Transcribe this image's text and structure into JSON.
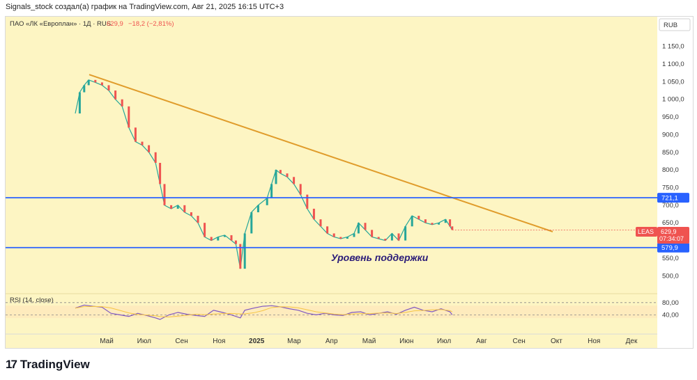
{
  "header": {
    "attribution": "Signals_stock создал(а) график на TradingView.com, Авг 21, 2025 16:15 UTC+3"
  },
  "legend": {
    "symbol": "ПАО «ЛК «Европлан» · 1Д · RUS",
    "price": "629,9",
    "change": "−18,2 (−2,81%)"
  },
  "currency": "RUB",
  "price_tag": {
    "ticker": "LEAS",
    "price": "629,9",
    "countdown": "07:34:07"
  },
  "support_label": "Уровень поддержки",
  "rsi_label": "RSI (14, close)",
  "footer": {
    "brand": "TradingView"
  },
  "colors": {
    "chart_bg": "#fdf5c3",
    "up": "#26a69a",
    "down": "#ef5350",
    "trendline": "#e09c2b",
    "level": "#2962ff",
    "rsi": "#7e57c2",
    "rsi_ma": "#f5c542",
    "tag_red": "#ef5350",
    "tag_blue": "#2962ff"
  },
  "chart_data": {
    "type": "line",
    "price_axis": {
      "ticks": [
        500,
        550,
        600,
        650,
        700,
        750,
        800,
        850,
        900,
        950,
        1000,
        1050,
        1100,
        1150
      ],
      "labels": [
        "500,0",
        "550,0",
        "600,0",
        "650,0",
        "700,0",
        "750,0",
        "800,0",
        "850,0",
        "900,0",
        "950,0",
        "1 000,0",
        "1 050,0",
        "1 100,0",
        "1 150,0"
      ],
      "range": [
        465,
        1175
      ]
    },
    "time_axis": {
      "labels": [
        "Май",
        "Июл",
        "Сен",
        "Ноя",
        "2025",
        "Мар",
        "Апр",
        "Май",
        "Июн",
        "Июл",
        "Авг",
        "Сен",
        "Окт",
        "Ноя",
        "Дек"
      ],
      "bold": [
        "2025"
      ]
    },
    "levels": [
      {
        "value": 721.1,
        "label": "721,1"
      },
      {
        "value": 579.9,
        "label": "579,9"
      }
    ],
    "trendline": {
      "start_price": 1070,
      "end_price": 625
    },
    "price_series": [
      [
        0.0,
        960
      ],
      [
        0.01,
        1020
      ],
      [
        0.02,
        1040
      ],
      [
        0.03,
        1055
      ],
      [
        0.045,
        1048
      ],
      [
        0.06,
        1040
      ],
      [
        0.075,
        1025
      ],
      [
        0.09,
        1000
      ],
      [
        0.105,
        980
      ],
      [
        0.12,
        920
      ],
      [
        0.135,
        880
      ],
      [
        0.15,
        870
      ],
      [
        0.165,
        850
      ],
      [
        0.18,
        820
      ],
      [
        0.19,
        760
      ],
      [
        0.2,
        700
      ],
      [
        0.215,
        690
      ],
      [
        0.23,
        700
      ],
      [
        0.245,
        680
      ],
      [
        0.26,
        670
      ],
      [
        0.275,
        650
      ],
      [
        0.29,
        610
      ],
      [
        0.305,
        600
      ],
      [
        0.32,
        610
      ],
      [
        0.335,
        615
      ],
      [
        0.35,
        600
      ],
      [
        0.36,
        590
      ],
      [
        0.37,
        520
      ],
      [
        0.38,
        620
      ],
      [
        0.395,
        680
      ],
      [
        0.41,
        700
      ],
      [
        0.43,
        720
      ],
      [
        0.44,
        760
      ],
      [
        0.45,
        800
      ],
      [
        0.46,
        790
      ],
      [
        0.475,
        780
      ],
      [
        0.49,
        760
      ],
      [
        0.505,
        730
      ],
      [
        0.52,
        690
      ],
      [
        0.535,
        660
      ],
      [
        0.55,
        640
      ],
      [
        0.565,
        620
      ],
      [
        0.58,
        610
      ],
      [
        0.595,
        605
      ],
      [
        0.61,
        610
      ],
      [
        0.625,
        620
      ],
      [
        0.635,
        650
      ],
      [
        0.65,
        630
      ],
      [
        0.665,
        610
      ],
      [
        0.68,
        605
      ],
      [
        0.695,
        600
      ],
      [
        0.71,
        620
      ],
      [
        0.725,
        600
      ],
      [
        0.74,
        640
      ],
      [
        0.755,
        670
      ],
      [
        0.77,
        660
      ],
      [
        0.785,
        650
      ],
      [
        0.8,
        645
      ],
      [
        0.815,
        650
      ],
      [
        0.83,
        660
      ],
      [
        0.84,
        640
      ],
      [
        0.845,
        630
      ]
    ],
    "rsi": {
      "levels": [
        {
          "value": 80,
          "label": "80,00"
        },
        {
          "value": 40,
          "label": "40,00"
        }
      ],
      "band": [
        30,
        70
      ],
      "values": [
        [
          0.0,
          62
        ],
        [
          0.02,
          72
        ],
        [
          0.04,
          68
        ],
        [
          0.06,
          65
        ],
        [
          0.08,
          45
        ],
        [
          0.1,
          40
        ],
        [
          0.12,
          35
        ],
        [
          0.14,
          45
        ],
        [
          0.16,
          38
        ],
        [
          0.18,
          30
        ],
        [
          0.19,
          25
        ],
        [
          0.21,
          40
        ],
        [
          0.23,
          48
        ],
        [
          0.25,
          42
        ],
        [
          0.27,
          38
        ],
        [
          0.29,
          35
        ],
        [
          0.31,
          55
        ],
        [
          0.33,
          48
        ],
        [
          0.35,
          40
        ],
        [
          0.37,
          30
        ],
        [
          0.38,
          55
        ],
        [
          0.4,
          62
        ],
        [
          0.42,
          68
        ],
        [
          0.44,
          70
        ],
        [
          0.46,
          66
        ],
        [
          0.48,
          60
        ],
        [
          0.5,
          55
        ],
        [
          0.52,
          45
        ],
        [
          0.54,
          40
        ],
        [
          0.56,
          45
        ],
        [
          0.58,
          40
        ],
        [
          0.6,
          38
        ],
        [
          0.62,
          48
        ],
        [
          0.64,
          50
        ],
        [
          0.66,
          40
        ],
        [
          0.68,
          45
        ],
        [
          0.7,
          50
        ],
        [
          0.72,
          42
        ],
        [
          0.74,
          55
        ],
        [
          0.76,
          65
        ],
        [
          0.78,
          55
        ],
        [
          0.8,
          50
        ],
        [
          0.82,
          60
        ],
        [
          0.84,
          50
        ],
        [
          0.845,
          40
        ]
      ]
    }
  }
}
